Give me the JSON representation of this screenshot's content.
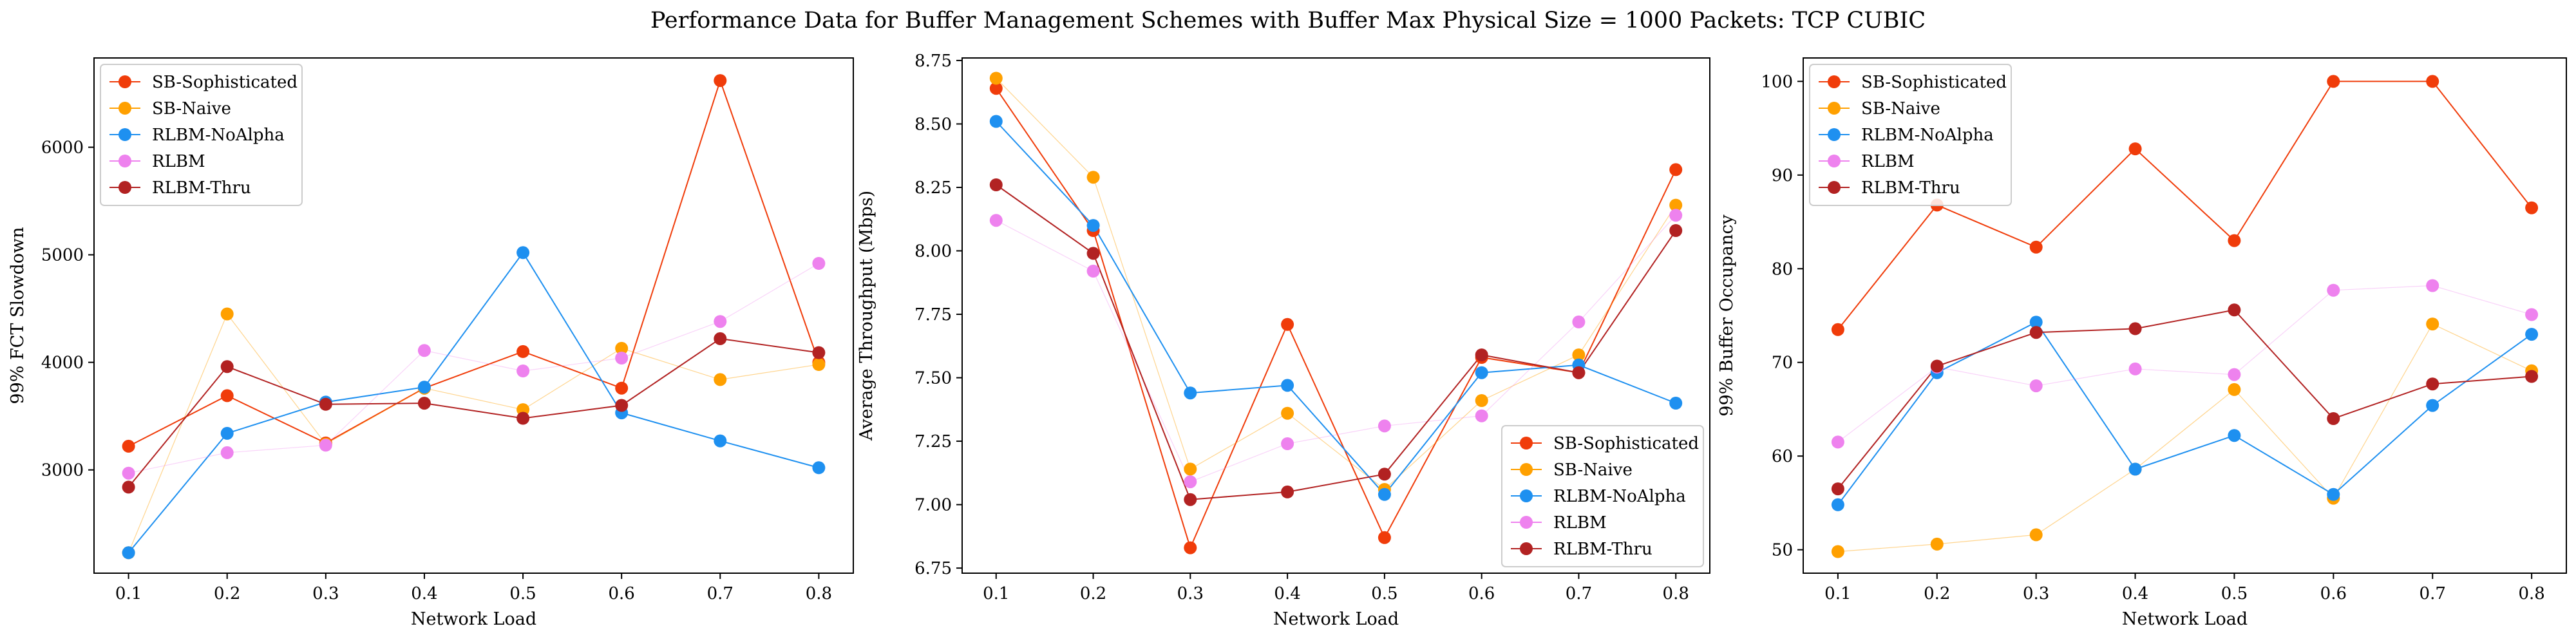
{
  "figure": {
    "title": "Performance Data for Buffer Management Schemes with Buffer Max Physical Size = 1000 Packets: TCP CUBIC"
  },
  "colors": {
    "SB-Sophisticated": "#f03c0a",
    "SB-Naive": "#ffa000",
    "RLBM-NoAlpha": "#1e90f0",
    "RLBM": "#ee82ee",
    "RLBM-Thru": "#b22222"
  },
  "chart_data": [
    {
      "type": "line",
      "title": "",
      "xlabel": "Network Load",
      "ylabel": "99% FCT Slowdown",
      "x": [
        0.1,
        0.2,
        0.3,
        0.4,
        0.5,
        0.6,
        0.7,
        0.8
      ],
      "xticks": [
        "0.1",
        "0.2",
        "0.3",
        "0.4",
        "0.5",
        "0.6",
        "0.7",
        "0.8"
      ],
      "xlim": [
        0.065,
        0.835
      ],
      "ylim": [
        2040,
        6830
      ],
      "yticks": [
        3000,
        4000,
        5000,
        6000
      ],
      "ytick_labels": [
        "3000",
        "4000",
        "5000",
        "6000"
      ],
      "legend_position": "upper-left",
      "grid": false,
      "series": [
        {
          "name": "SB-Sophisticated",
          "values": [
            3220,
            3690,
            3250,
            3760,
            4100,
            3760,
            6620,
            4000
          ]
        },
        {
          "name": "SB-Naive",
          "values": [
            2230,
            4450,
            3240,
            3760,
            3560,
            4130,
            3840,
            3980
          ]
        },
        {
          "name": "RLBM-NoAlpha",
          "values": [
            2230,
            3340,
            3630,
            3770,
            5020,
            3530,
            3270,
            3020
          ]
        },
        {
          "name": "RLBM",
          "values": [
            2970,
            3160,
            3230,
            4110,
            3920,
            4040,
            4380,
            4920
          ]
        },
        {
          "name": "RLBM-Thru",
          "values": [
            2840,
            3960,
            3610,
            3620,
            3480,
            3600,
            4220,
            4090
          ]
        }
      ]
    },
    {
      "type": "line",
      "title": "",
      "xlabel": "Network Load",
      "ylabel": "Average Throughput (Mbps)",
      "x": [
        0.1,
        0.2,
        0.3,
        0.4,
        0.5,
        0.6,
        0.7,
        0.8
      ],
      "xticks": [
        "0.1",
        "0.2",
        "0.3",
        "0.4",
        "0.5",
        "0.6",
        "0.7",
        "0.8"
      ],
      "xlim": [
        0.065,
        0.835
      ],
      "ylim": [
        6.73,
        8.76
      ],
      "yticks": [
        6.75,
        7.0,
        7.25,
        7.5,
        7.75,
        8.0,
        8.25,
        8.5,
        8.75
      ],
      "ytick_labels": [
        "6.75",
        "7.00",
        "7.25",
        "7.50",
        "7.75",
        "8.00",
        "8.25",
        "8.50",
        "8.75"
      ],
      "legend_position": "lower-right",
      "grid": false,
      "series": [
        {
          "name": "SB-Sophisticated",
          "values": [
            8.64,
            8.08,
            6.83,
            7.71,
            6.87,
            7.58,
            7.52,
            8.32
          ]
        },
        {
          "name": "SB-Naive",
          "values": [
            8.68,
            8.29,
            7.14,
            7.36,
            7.06,
            7.41,
            7.59,
            8.18
          ]
        },
        {
          "name": "RLBM-NoAlpha",
          "values": [
            8.51,
            8.1,
            7.44,
            7.47,
            7.04,
            7.52,
            7.55,
            7.4
          ]
        },
        {
          "name": "RLBM",
          "values": [
            8.12,
            7.92,
            7.09,
            7.24,
            7.31,
            7.35,
            7.72,
            8.14
          ]
        },
        {
          "name": "RLBM-Thru",
          "values": [
            8.26,
            7.99,
            7.02,
            7.05,
            7.12,
            7.59,
            7.52,
            8.08
          ]
        }
      ]
    },
    {
      "type": "line",
      "title": "",
      "xlabel": "Network Load",
      "ylabel": "99% Buffer Occupancy",
      "x": [
        0.1,
        0.2,
        0.3,
        0.4,
        0.5,
        0.6,
        0.7,
        0.8
      ],
      "xticks": [
        "0.1",
        "0.2",
        "0.3",
        "0.4",
        "0.5",
        "0.6",
        "0.7",
        "0.8"
      ],
      "xlim": [
        0.065,
        0.835
      ],
      "ylim": [
        47.5,
        102.5
      ],
      "yticks": [
        50,
        60,
        70,
        80,
        90,
        100
      ],
      "ytick_labels": [
        "50",
        "60",
        "70",
        "80",
        "90",
        "100"
      ],
      "legend_position": "upper-left",
      "grid": false,
      "series": [
        {
          "name": "SB-Sophisticated",
          "values": [
            73.5,
            86.8,
            82.3,
            92.8,
            83.0,
            100.0,
            100.0,
            86.5
          ]
        },
        {
          "name": "SB-Naive",
          "values": [
            49.8,
            50.6,
            51.6,
            58.6,
            67.1,
            55.5,
            74.1,
            69.1
          ]
        },
        {
          "name": "RLBM-NoAlpha",
          "values": [
            54.8,
            68.9,
            74.3,
            58.6,
            62.2,
            55.9,
            65.4,
            73.0
          ]
        },
        {
          "name": "RLBM",
          "values": [
            61.5,
            69.5,
            67.5,
            69.3,
            68.7,
            77.7,
            78.2,
            75.1
          ]
        },
        {
          "name": "RLBM-Thru",
          "values": [
            56.5,
            69.6,
            73.2,
            73.6,
            75.6,
            64.0,
            67.7,
            68.5
          ]
        }
      ]
    }
  ]
}
